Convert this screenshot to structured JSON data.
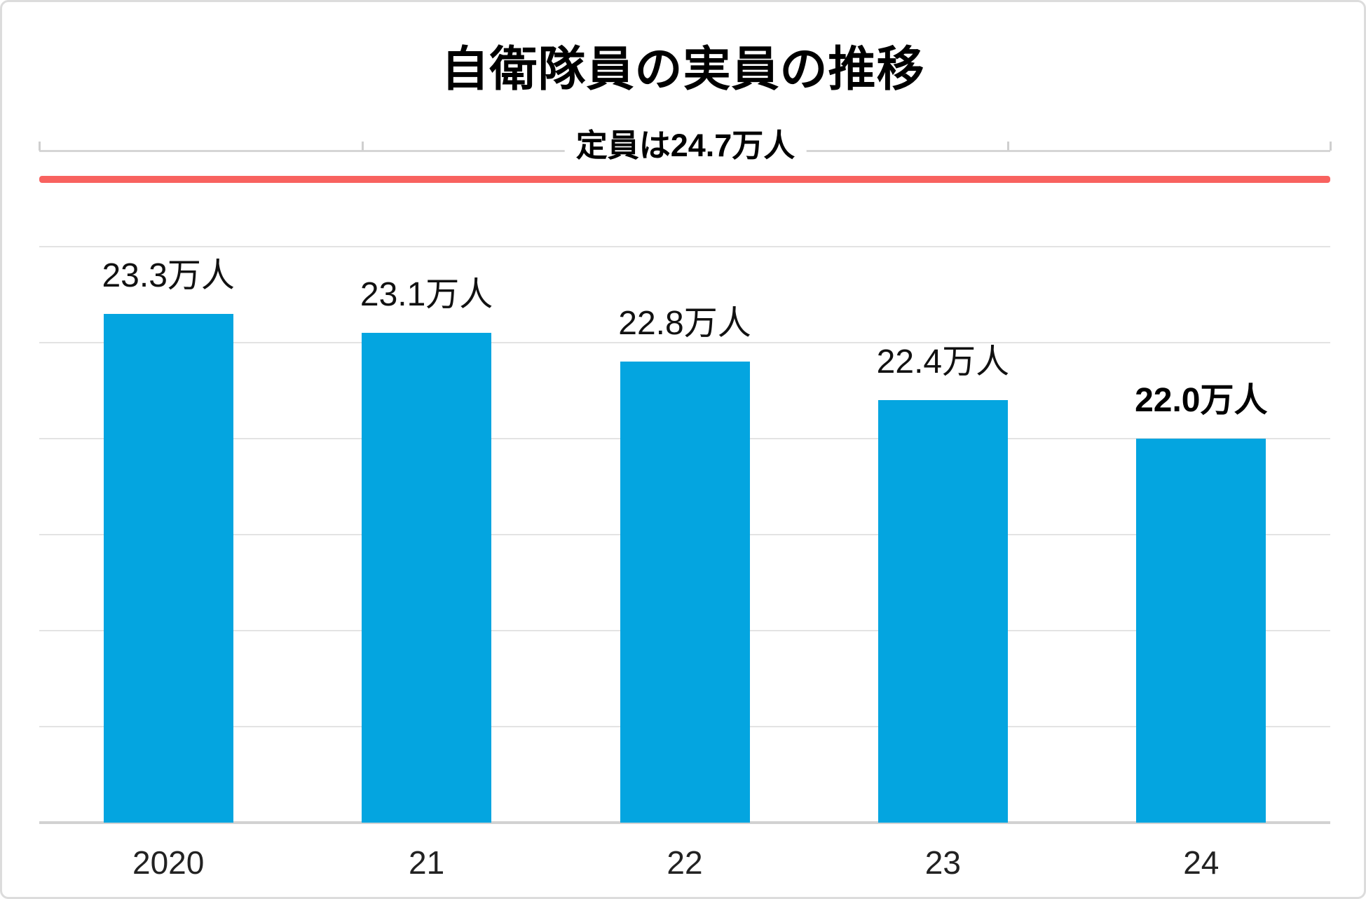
{
  "chart_data": {
    "type": "bar",
    "title": "自衛隊員の実員の推移",
    "subtitle": "定員は24.7万人",
    "categories": [
      "2020",
      "21",
      "22",
      "23",
      "24"
    ],
    "values": [
      23.3,
      23.1,
      22.8,
      22.4,
      22.0
    ],
    "bar_labels": [
      "23.3万人",
      "23.1万人",
      "22.8万人",
      "22.4万人",
      "22.0万人"
    ],
    "emphasized_bar_label_index": 4,
    "unit": "万人",
    "reference_line": {
      "value": 24.7,
      "color": "#f8625f"
    },
    "ylim": [
      18,
      25
    ],
    "grid_interval": 1,
    "grid": "horizontal",
    "legend": "none",
    "bar_color": "#04a5e0",
    "xlabel": "",
    "ylabel": ""
  }
}
